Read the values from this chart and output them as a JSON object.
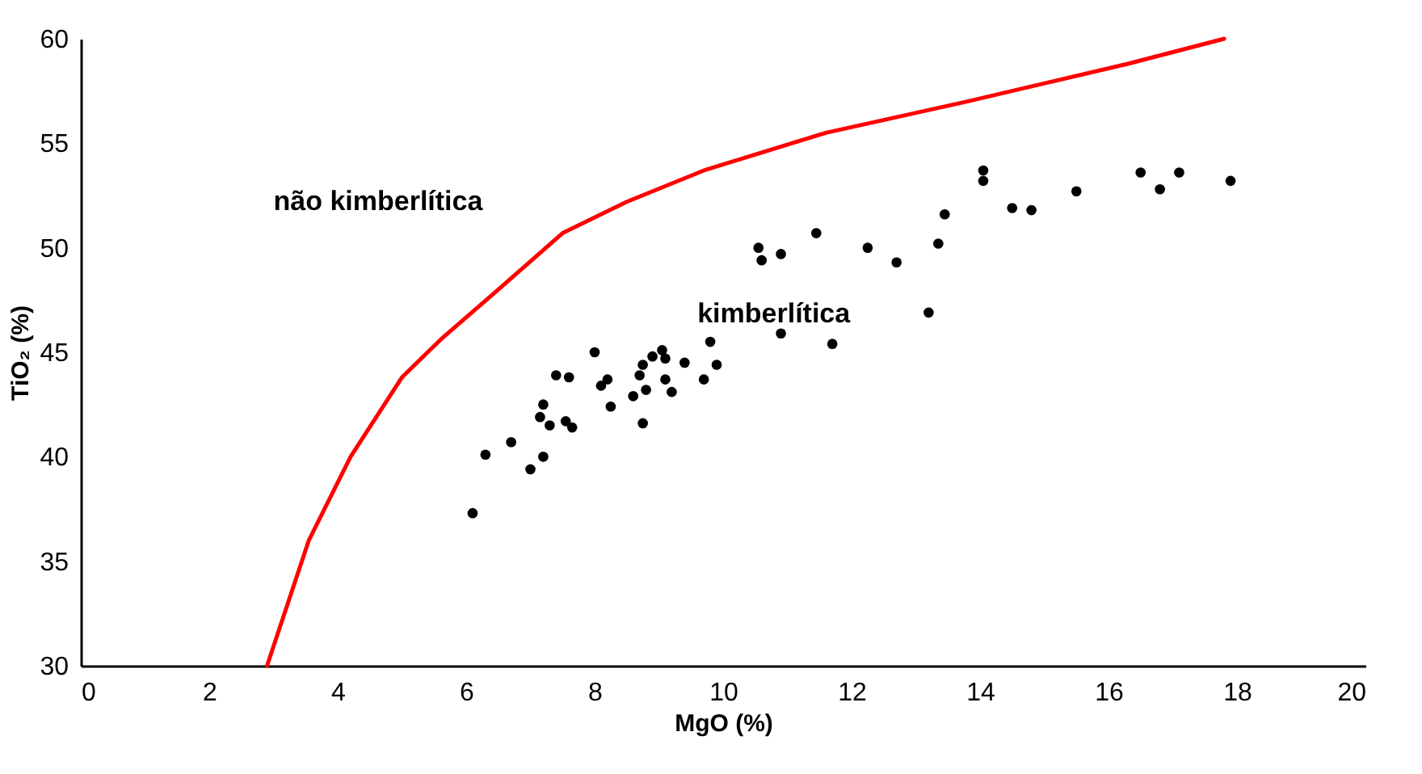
{
  "chart_data": {
    "type": "scatter",
    "xlabel": "MgO (%)",
    "ylabel": "TiO₂ (%)",
    "xlim": [
      0,
      20
    ],
    "xticks": [
      0,
      2,
      4,
      6,
      8,
      10,
      12,
      14,
      16,
      18,
      20
    ],
    "ylim": [
      30,
      60
    ],
    "yticks": [
      30,
      35,
      40,
      45,
      50,
      55,
      60
    ],
    "grid": false,
    "marker": "circle",
    "annotations": [
      "não kimberlítica",
      "kimberlítica"
    ],
    "series": [
      {
        "color": "#000000",
        "x": [
          6.1,
          6.3,
          6.7,
          7.0,
          7.2,
          7.15,
          7.2,
          7.3,
          7.4,
          7.6,
          7.55,
          7.65,
          8.0,
          8.1,
          8.2,
          8.25,
          8.6,
          8.75,
          8.8,
          8.7,
          8.75,
          8.9,
          9.05,
          9.1,
          9.1,
          9.2,
          9.4,
          9.7,
          9.8,
          9.9,
          10.9,
          11.7,
          10.55,
          10.6,
          10.9,
          11.45,
          12.25,
          12.7,
          13.2,
          13.35,
          13.45,
          14.05,
          14.05,
          14.5,
          14.8,
          15.5,
          16.5,
          16.8,
          17.1,
          17.9
        ],
        "values": [
          37.3,
          40.1,
          40.7,
          39.4,
          40.0,
          41.9,
          42.5,
          41.5,
          43.9,
          43.8,
          41.7,
          41.4,
          45.0,
          43.4,
          43.7,
          42.4,
          42.9,
          41.6,
          43.2,
          43.9,
          44.4,
          44.8,
          45.1,
          44.7,
          43.7,
          43.1,
          44.5,
          43.7,
          45.5,
          44.4,
          45.9,
          45.4,
          50.0,
          49.4,
          49.7,
          50.7,
          50.0,
          49.3,
          46.9,
          50.2,
          51.6,
          53.7,
          53.2,
          51.9,
          51.8,
          52.7,
          53.6,
          52.8,
          53.6,
          53.2
        ]
      },
      {
        "type": "line",
        "color": "#ff0000",
        "line_style": "solid",
        "marker": "none",
        "x": [
          2.9,
          3.55,
          4.2,
          5.0,
          5.6,
          6.5,
          7.5,
          8.5,
          9.7,
          11.6,
          13.8,
          16.3,
          17.8
        ],
        "values": [
          30.0,
          36.0,
          40.0,
          43.8,
          45.6,
          48.0,
          50.7,
          52.2,
          53.7,
          55.5,
          57.0,
          58.8,
          60.0
        ]
      }
    ]
  }
}
